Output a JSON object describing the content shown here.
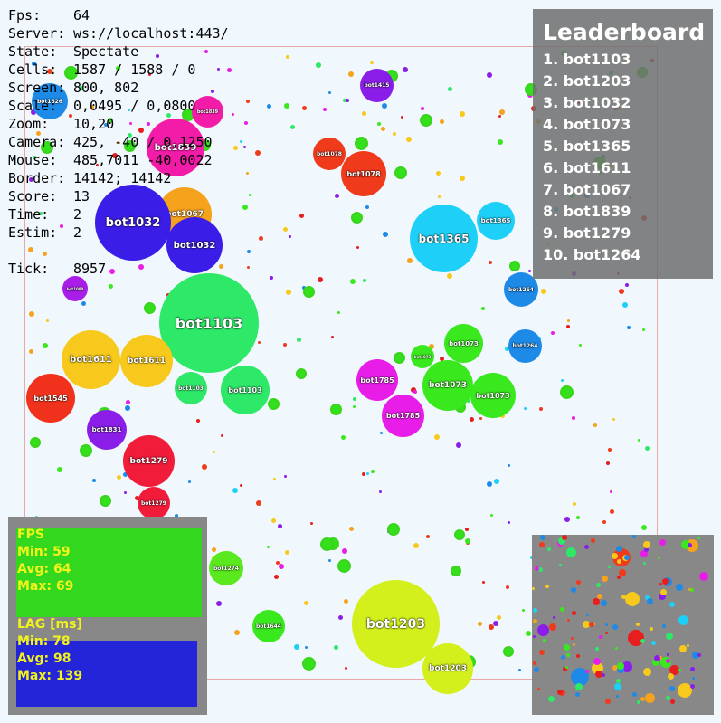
{
  "stats": [
    {
      "label": "Fps:",
      "value": "64"
    },
    {
      "label": "Server:",
      "value": "ws://localhost:443/"
    },
    {
      "label": "State:",
      "value": "Spectate"
    },
    {
      "label": "Cells:",
      "value": "1587 / 1588 / 0"
    },
    {
      "label": "Screen:",
      "value": "800, 802"
    },
    {
      "label": "Scale:",
      "value": "0,0495 / 0,0800"
    },
    {
      "label": "Zoom:",
      "value": "10,20"
    },
    {
      "label": "Camera:",
      "value": "425, -40 / 0,1250"
    },
    {
      "label": "Mouse:",
      "value": "485,7011 -40,0022"
    },
    {
      "label": "Border:",
      "value": "14142; 14142"
    },
    {
      "label": "Score:",
      "value": "13"
    },
    {
      "label": "Time:",
      "value": "2"
    },
    {
      "label": "Estim:",
      "value": "2"
    },
    {
      "label": "",
      "value": ""
    },
    {
      "label": "Tick:",
      "value": "8957"
    }
  ],
  "leaderboard": {
    "title": "Leaderboard",
    "entries": [
      "1. bot1103",
      "2. bot1203",
      "3. bot1032",
      "4. bot1073",
      "5. bot1365",
      "6. bot1611",
      "7. bot1067",
      "8. bot1839",
      "9. bot1279",
      "10. bot1264"
    ]
  },
  "perf": {
    "fps_title": "FPS",
    "fps_min": "Min: 59",
    "fps_avg": "Avg: 64",
    "fps_max": "Max: 69",
    "lag_title": "LAG [ms]",
    "lag_min": "Min: 78",
    "lag_avg": "Avg: 98",
    "lag_max": "Max: 139"
  },
  "cells": [
    {
      "name": "bot1103",
      "color": "#2ee868"
    },
    {
      "name": "bot1203",
      "color": "#d3f01c"
    },
    {
      "name": "bot1203",
      "color": "#d3f01c"
    },
    {
      "name": "bot1032",
      "color": "#3a1ee8"
    },
    {
      "name": "bot1032",
      "color": "#3a1ee8"
    },
    {
      "name": "bot1067",
      "color": "#f5a21c"
    },
    {
      "name": "bot1365",
      "color": "#1ed0f7"
    },
    {
      "name": "bot1365",
      "color": "#1ed0f7"
    },
    {
      "name": "bot1611",
      "color": "#f7c91c"
    },
    {
      "name": "bot1611",
      "color": "#f7c91c"
    },
    {
      "name": "bot1839",
      "color": "#f21ca8"
    },
    {
      "name": "bot1839",
      "color": "#f21ca8"
    },
    {
      "name": "bot1415",
      "color": "#8a1ee8"
    },
    {
      "name": "bot1078",
      "color": "#f03a1c"
    },
    {
      "name": "bot1078",
      "color": "#f03a1c"
    },
    {
      "name": "bot1073",
      "color": "#3ae81e"
    },
    {
      "name": "bot1073",
      "color": "#3ae81e"
    },
    {
      "name": "bot1073",
      "color": "#3ae81e"
    },
    {
      "name": "bot1785",
      "color": "#e81ee8"
    },
    {
      "name": "bot1785",
      "color": "#e81ee8"
    },
    {
      "name": "bot1264",
      "color": "#1e8ae8"
    },
    {
      "name": "bot1264",
      "color": "#1e8ae8"
    },
    {
      "name": "bot1545",
      "color": "#f0321c"
    },
    {
      "name": "bot1831",
      "color": "#8a1ee8"
    },
    {
      "name": "bot1279",
      "color": "#f01c3a"
    },
    {
      "name": "bot1279",
      "color": "#f01c3a"
    },
    {
      "name": "bot1103",
      "color": "#2ee868"
    },
    {
      "name": "bot1103",
      "color": "#2ee868"
    },
    {
      "name": "bot1626",
      "color": "#1e8ae8"
    },
    {
      "name": "bot1949",
      "color": "#2ee81e"
    },
    {
      "name": "bot1274",
      "color": "#5ae81e"
    },
    {
      "name": "bot1644",
      "color": "#3ae81e"
    },
    {
      "name": "bot1080",
      "color": "#a81ee8"
    },
    {
      "name": "bot1073",
      "color": "#3ae81e"
    }
  ],
  "colors": {
    "background": "#f1f8fd",
    "virus": "#33e01b",
    "panel": "#6e6e6e",
    "perf_text": "#f3f31c"
  }
}
